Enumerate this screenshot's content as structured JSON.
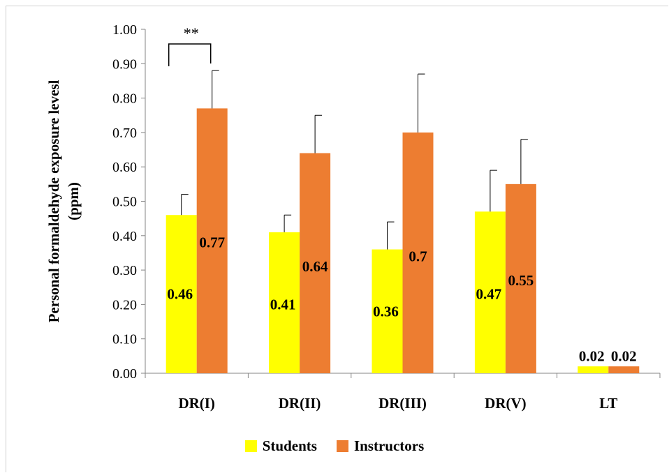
{
  "chart_data": {
    "type": "bar",
    "categories": [
      "DR(I)",
      "DR(II)",
      "DR(III)",
      "DR(V)",
      "LT"
    ],
    "series": [
      {
        "name": "Students",
        "values": [
          0.46,
          0.41,
          0.36,
          0.47,
          0.02
        ],
        "errors": [
          0.06,
          0.05,
          0.08,
          0.12,
          null
        ],
        "labels": [
          "0.46",
          "0.41",
          "0.36",
          "0.47",
          "0.02"
        ]
      },
      {
        "name": "Instructors",
        "values": [
          0.77,
          0.64,
          0.7,
          0.55,
          0.02
        ],
        "errors": [
          0.11,
          0.11,
          0.17,
          0.13,
          null
        ],
        "labels": [
          "0.77",
          "0.64",
          "0.7",
          "0.55",
          "0.02"
        ]
      }
    ],
    "colors": {
      "Students": "#ffff00",
      "Instructors": "#ed7d31"
    },
    "yticks": [
      "0.00",
      "0.10",
      "0.20",
      "0.30",
      "0.40",
      "0.50",
      "0.60",
      "0.70",
      "0.80",
      "0.90",
      "1.00"
    ],
    "ylim": [
      0,
      1.0
    ],
    "ylabel": "Personal formaldehyde exposure levesl (ppm)",
    "xlabel": "",
    "title": "",
    "grid": false,
    "legend_position": "bottom",
    "annotations": [
      {
        "text": "**",
        "category": "DR(I)",
        "type": "significance-bracket"
      }
    ]
  }
}
